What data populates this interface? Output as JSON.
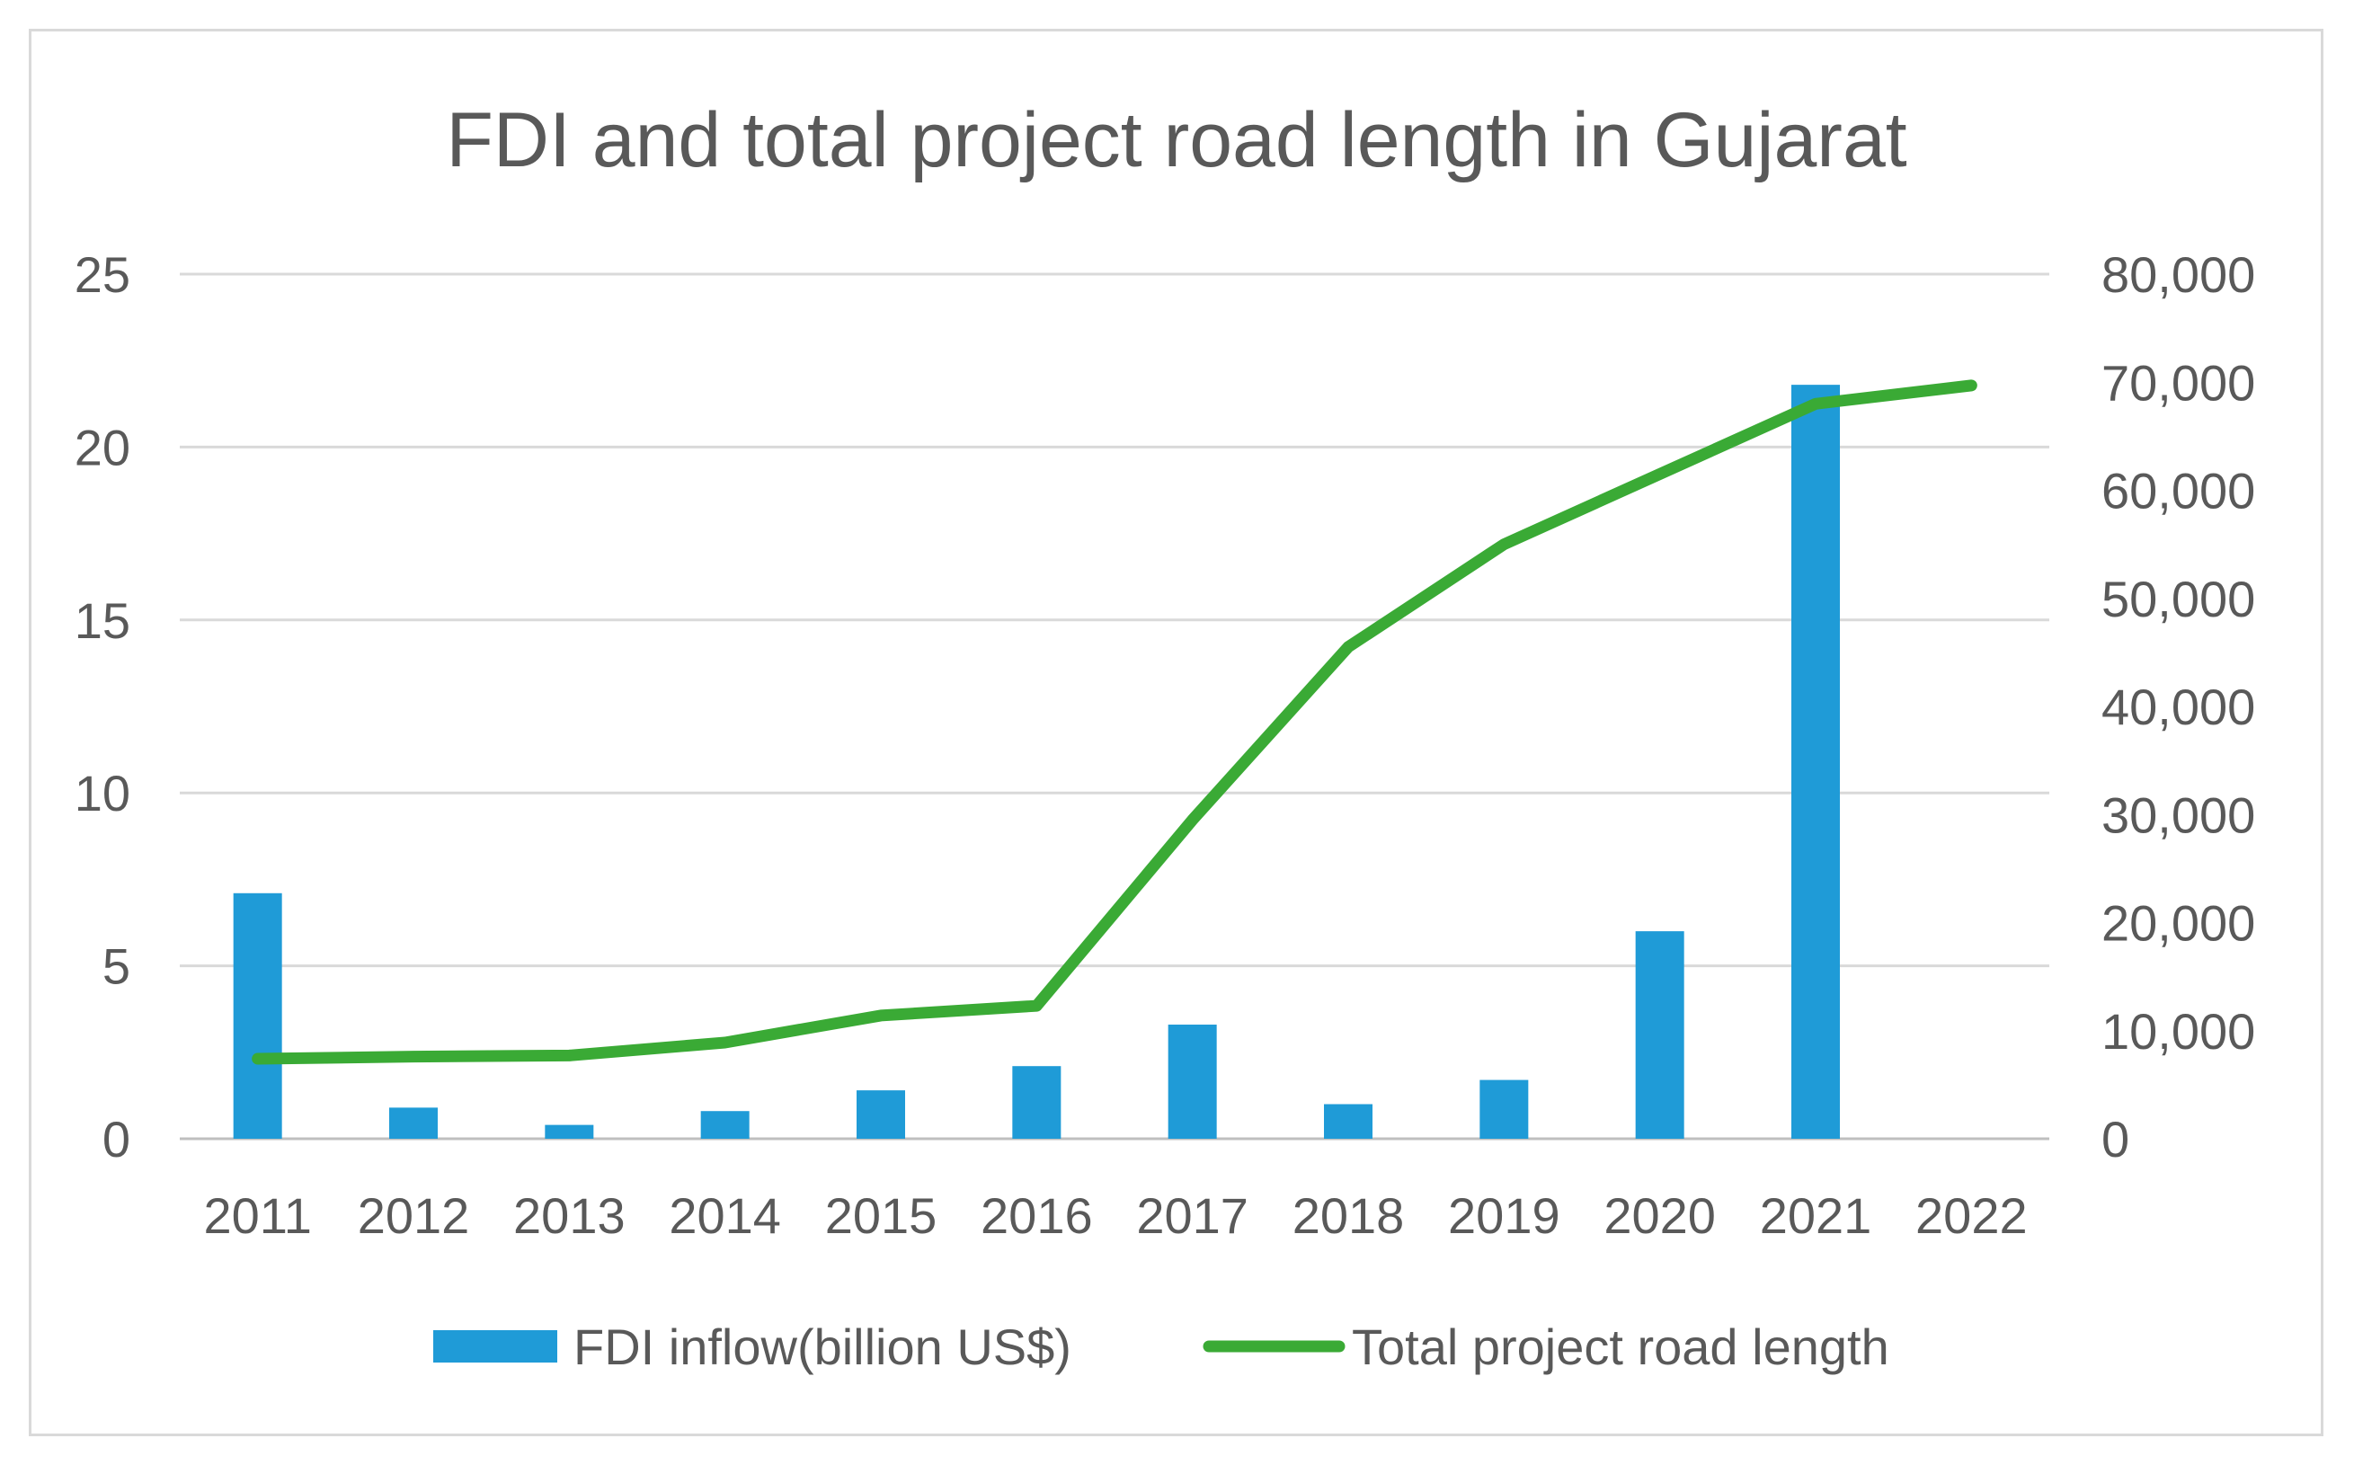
{
  "chart_data": {
    "type": "bar+line",
    "title": "FDI and total project road length in Gujarat",
    "categories": [
      "2011",
      "2012",
      "2013",
      "2014",
      "2015",
      "2016",
      "2017",
      "2018",
      "2019",
      "2020",
      "2021",
      "2022"
    ],
    "series": [
      {
        "name": "FDI inflow(billion US$)",
        "type": "bar",
        "axis": "left",
        "color": "#1f9bd7",
        "values": [
          7.1,
          0.9,
          0.4,
          0.8,
          1.4,
          2.1,
          3.3,
          1.0,
          1.7,
          6.0,
          21.8,
          null
        ]
      },
      {
        "name": "Total project road length",
        "type": "line",
        "axis": "right",
        "color": "#3aaa35",
        "values": [
          7400,
          7600,
          7700,
          8900,
          11400,
          12300,
          29500,
          45500,
          55000,
          61500,
          68000,
          69700
        ]
      }
    ],
    "y_left": {
      "min": 0,
      "max": 25,
      "ticks": [
        "0",
        "5",
        "10",
        "15",
        "20",
        "25"
      ]
    },
    "y_right": {
      "min": 0,
      "max": 80000,
      "ticks": [
        "0",
        "10,000",
        "20,000",
        "30,000",
        "40,000",
        "50,000",
        "60,000",
        "70,000",
        "80,000"
      ]
    },
    "grid": true,
    "legend_position": "bottom"
  }
}
